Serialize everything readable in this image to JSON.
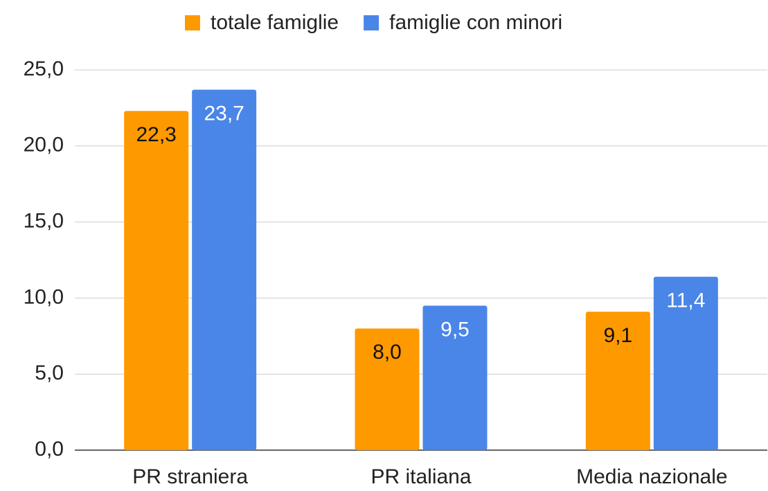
{
  "chart_data": {
    "type": "bar",
    "categories": [
      "PR straniera",
      "PR italiana",
      "Media nazionale"
    ],
    "series": [
      {
        "name": "totale famiglie",
        "color": "#ff9900",
        "values": [
          22.3,
          8.0,
          9.1
        ],
        "value_labels": [
          "22,3",
          "8,0",
          "9,1"
        ]
      },
      {
        "name": "famiglie con minori",
        "color": "#4a86e8",
        "values": [
          23.7,
          9.5,
          11.4
        ],
        "value_labels": [
          "23,7",
          "9,5",
          "11,4"
        ]
      }
    ],
    "ylim": [
      0,
      25
    ],
    "yticks": [
      {
        "value": 0,
        "label": "0,0"
      },
      {
        "value": 5,
        "label": "5,0"
      },
      {
        "value": 10,
        "label": "10,0"
      },
      {
        "value": 15,
        "label": "15,0"
      },
      {
        "value": 20,
        "label": "20,0"
      },
      {
        "value": 25,
        "label": "25,0"
      }
    ],
    "grid": true,
    "legend": "top"
  }
}
